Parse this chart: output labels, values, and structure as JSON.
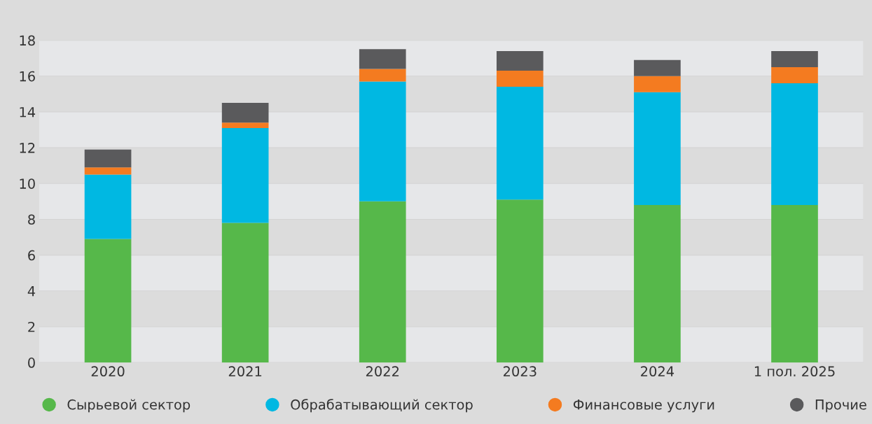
{
  "chart_data": {
    "type": "bar",
    "stacked": true,
    "categories": [
      "2020",
      "2021",
      "2022",
      "2023",
      "2024",
      "1 пол. 2025"
    ],
    "series": [
      {
        "name": "Сырьевой сектор",
        "color": "#56b84a",
        "values": [
          6.9,
          7.8,
          9.0,
          9.1,
          8.8,
          8.8
        ]
      },
      {
        "name": "Обрабатывающий сектор",
        "color": "#00b8e2",
        "values": [
          3.6,
          5.3,
          6.7,
          6.3,
          6.3,
          6.8
        ]
      },
      {
        "name": "Финансовые услуги",
        "color": "#f47b20",
        "values": [
          0.4,
          0.3,
          0.7,
          0.9,
          0.9,
          0.9
        ]
      },
      {
        "name": "Прочие",
        "color": "#5a5a5c",
        "values": [
          1.0,
          1.1,
          1.1,
          1.1,
          0.9,
          0.9
        ]
      }
    ],
    "ylim": [
      0,
      18
    ],
    "yticks": [
      0,
      2,
      4,
      6,
      8,
      10,
      12,
      14,
      16,
      18
    ],
    "grid": "y",
    "legend": "bottom",
    "marker": "circle"
  }
}
